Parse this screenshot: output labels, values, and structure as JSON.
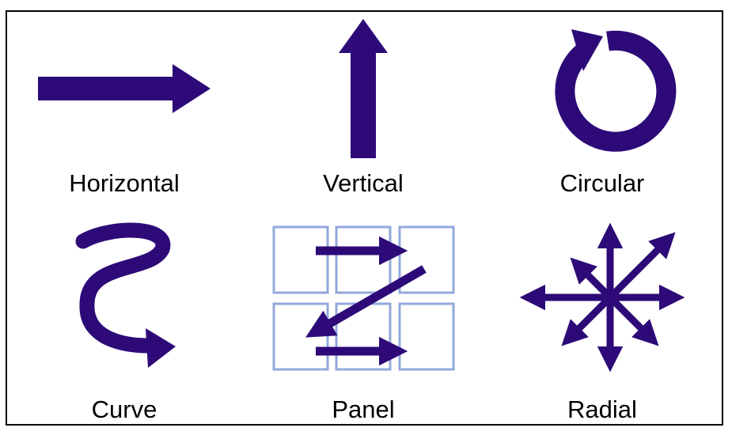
{
  "colors": {
    "arrow": "#2d0a78",
    "panel_border": "#93a9dc",
    "frame": "#000000"
  },
  "items": [
    {
      "label": "Horizontal",
      "icon": "horizontal-arrow-icon"
    },
    {
      "label": "Vertical",
      "icon": "vertical-arrow-icon"
    },
    {
      "label": "Circular",
      "icon": "circular-arrow-icon"
    },
    {
      "label": "Curve",
      "icon": "curve-arrow-icon"
    },
    {
      "label": "Panel",
      "icon": "panel-arrows-icon"
    },
    {
      "label": "Radial",
      "icon": "radial-arrows-icon"
    }
  ]
}
